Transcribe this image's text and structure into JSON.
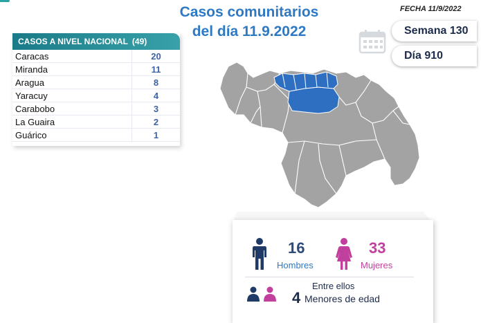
{
  "header": {
    "title_line1": "Casos comunitarios",
    "title_line2": "del día 11.9.2022",
    "fecha": "FECHA 11/9/2022"
  },
  "badges": {
    "semana": "Semana 130",
    "dia": "Día 910"
  },
  "table": {
    "header_label": "CASOS A NIVEL NACIONAL",
    "header_total": "(49)",
    "rows": [
      {
        "name": "Caracas",
        "value": "20"
      },
      {
        "name": "Miranda",
        "value": "11"
      },
      {
        "name": "Aragua",
        "value": "8"
      },
      {
        "name": "Yaracuy",
        "value": "4"
      },
      {
        "name": "Carabobo",
        "value": "3"
      },
      {
        "name": "La Guaira",
        "value": "2"
      },
      {
        "name": "Guárico",
        "value": "1"
      }
    ]
  },
  "stats": {
    "hombres_count": "16",
    "hombres_label": "Hombres",
    "mujeres_count": "33",
    "mujeres_label": "Mujeres",
    "entre_ellos": "Entre ellos",
    "menores_count": "4",
    "menores_label": "Menores de edad"
  },
  "colors": {
    "accent_blue": "#2e79c4",
    "highlight_states": "#2f6fc2",
    "map_gray": "#9e9e9e",
    "women_pink": "#c13f9d",
    "men_navy": "#1f3a66",
    "table_header_teal": "#1b7b88"
  },
  "icons": [
    "calendar-icon",
    "man-icon",
    "woman-icon",
    "children-icon"
  ]
}
